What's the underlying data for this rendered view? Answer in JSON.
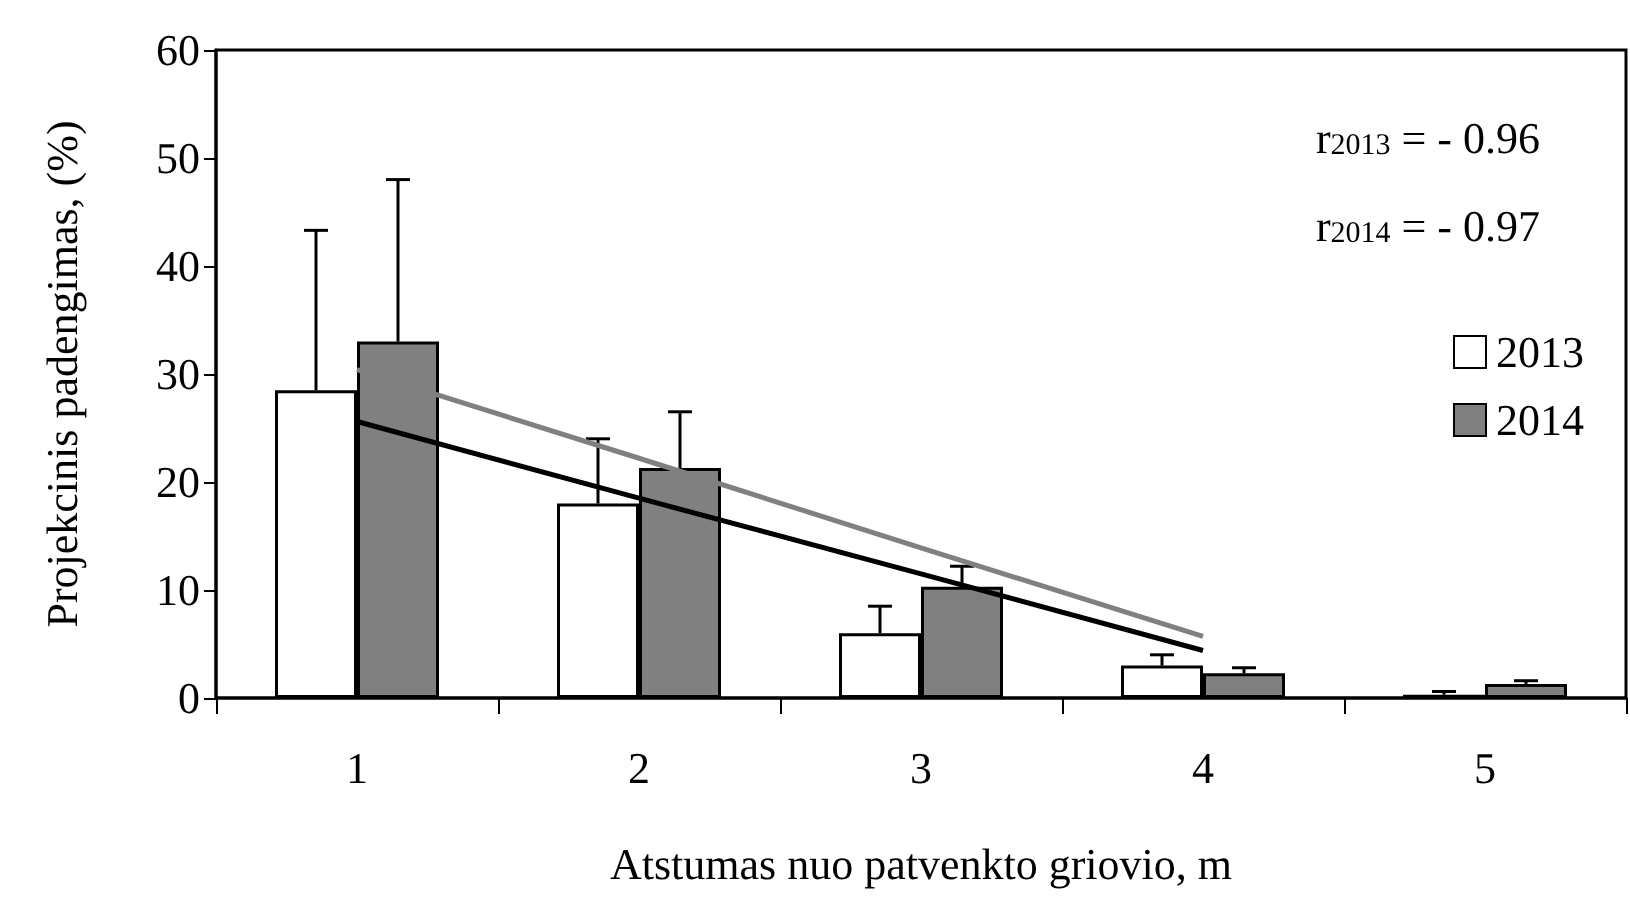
{
  "chart_data": {
    "type": "bar",
    "xlabel": "Atstumas nuo patvenkto griovio, m",
    "ylabel": "Projekcinis padengimas, (%)",
    "categories": [
      "1",
      "2",
      "3",
      "4",
      "5"
    ],
    "ylim": [
      0,
      60
    ],
    "yticks": [
      0,
      10,
      20,
      30,
      40,
      50,
      60
    ],
    "grid": false,
    "legend": "right",
    "annotations": [
      "r$_{2013}$ = - 0.96",
      "r$_{2014}$ = - 0.97"
    ],
    "series": [
      {
        "name": "2013",
        "color": "#ffffff",
        "values": [
          28.5,
          18,
          6,
          3,
          0.3
        ],
        "errors": [
          [
            28.5,
            43.3
          ],
          [
            18,
            24
          ],
          [
            6,
            8.5
          ],
          [
            3,
            4
          ],
          [
            0.3,
            0.6
          ]
        ]
      },
      {
        "name": "2014",
        "color": "#808080",
        "values": [
          33,
          21.3,
          10.3,
          2.3,
          1.3
        ],
        "errors": [
          [
            33,
            48
          ],
          [
            21.3,
            26.5
          ],
          [
            10.3,
            12.2
          ],
          [
            2.3,
            2.8
          ],
          [
            1.3,
            1.6
          ]
        ]
      },
      {
        "type": "line",
        "color": "#000000",
        "values": [
          25.6,
          18.5,
          11.5,
          4.4,
          null
        ]
      },
      {
        "type": "line",
        "color": "#808080",
        "values": [
          30.4,
          22.2,
          13.9,
          5.7,
          null
        ]
      }
    ]
  }
}
